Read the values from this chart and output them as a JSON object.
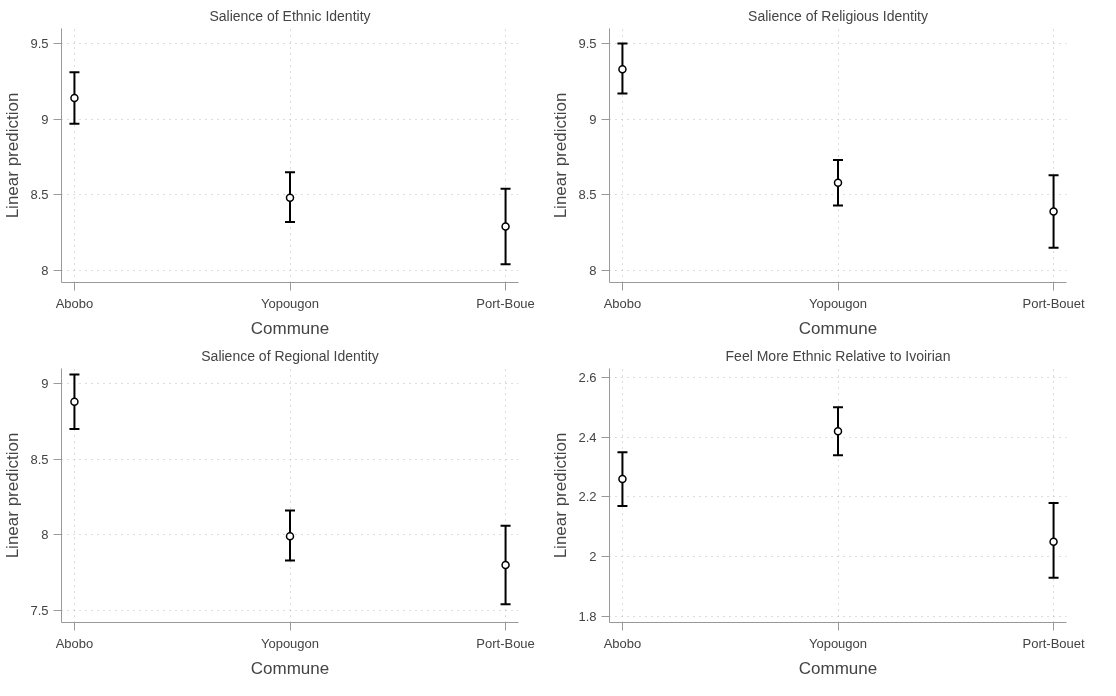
{
  "chart_data": [
    {
      "type": "scatter",
      "title": "Salience of Ethnic Identity",
      "xlabel": "Commune",
      "ylabel": "Linear prediction",
      "categories": [
        "Abobo",
        "Yopougon",
        "Port-Boue"
      ],
      "values": [
        9.14,
        8.48,
        8.29
      ],
      "errors": [
        [
          8.97,
          9.31
        ],
        [
          8.32,
          8.65
        ],
        [
          8.04,
          8.54
        ]
      ],
      "color": "#000000",
      "marker": "circle",
      "ylim": [
        7.92,
        9.6
      ],
      "yticks": [
        8,
        {
          "value": 8.5,
          "label": "8.5"
        },
        9,
        {
          "value": 9.5,
          "label": "9.5"
        }
      ],
      "grid": true
    },
    {
      "type": "scatter",
      "title": "Salience of Religious Identity",
      "xlabel": "Commune",
      "ylabel": "Linear prediction",
      "categories": [
        "Abobo",
        "Yopougon",
        "Port-Bouet"
      ],
      "values": [
        9.33,
        8.58,
        8.39
      ],
      "errors": [
        [
          9.17,
          9.5
        ],
        [
          8.43,
          8.73
        ],
        [
          8.15,
          8.63
        ]
      ],
      "color": "#000000",
      "marker": "circle",
      "ylim": [
        7.92,
        9.6
      ],
      "yticks": [
        8,
        {
          "value": 8.5,
          "label": "8.5"
        },
        9,
        {
          "value": 9.5,
          "label": "9.5"
        }
      ],
      "grid": true
    },
    {
      "type": "scatter",
      "title": "Salience of Regional Identity",
      "xlabel": "Commune",
      "ylabel": "Linear prediction",
      "categories": [
        "Abobo",
        "Yopougon",
        "Port-Boue"
      ],
      "values": [
        8.88,
        7.99,
        7.8
      ],
      "errors": [
        [
          8.7,
          9.06
        ],
        [
          7.83,
          8.16
        ],
        [
          7.54,
          8.06
        ]
      ],
      "color": "#000000",
      "marker": "circle",
      "ylim": [
        7.42,
        9.1
      ],
      "yticks": [
        {
          "value": 7.5,
          "label": "7.5"
        },
        8,
        {
          "value": 8.5,
          "label": "8.5"
        },
        9
      ],
      "grid": true
    },
    {
      "type": "scatter",
      "title": "Feel More Ethnic Relative to Ivoirian",
      "xlabel": "Commune",
      "ylabel": "Linear prediction",
      "categories": [
        "Abobo",
        "Yopougon",
        "Port-Bouet"
      ],
      "values": [
        2.26,
        2.42,
        2.05
      ],
      "errors": [
        [
          2.17,
          2.35
        ],
        [
          2.34,
          2.5
        ],
        [
          1.93,
          2.18
        ]
      ],
      "color": "#000000",
      "marker": "circle",
      "ylim": [
        1.78,
        2.63
      ],
      "yticks": [
        {
          "value": 1.8,
          "label": "1.8"
        },
        2,
        {
          "value": 2.2,
          "label": "2.2"
        },
        {
          "value": 2.4,
          "label": "2.4"
        },
        {
          "value": 2.6,
          "label": "2.6"
        }
      ],
      "grid": true
    }
  ]
}
